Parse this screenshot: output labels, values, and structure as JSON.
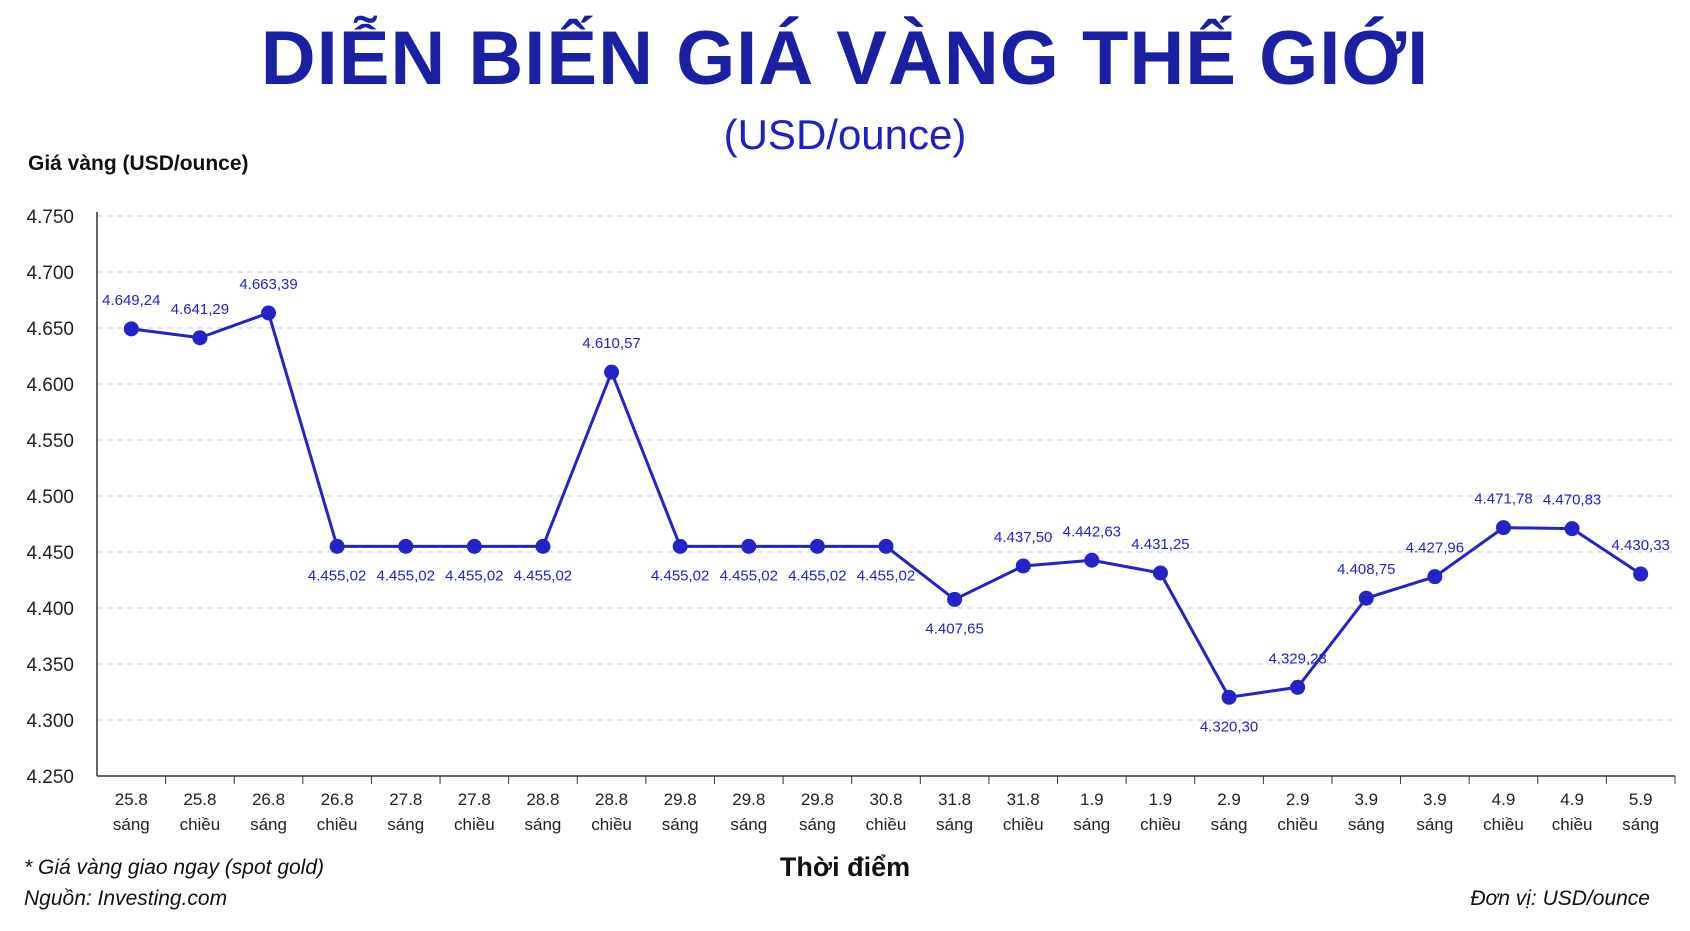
{
  "colors": {
    "title": "#1a1fa3",
    "series": "#2323c8",
    "grid": "#c9cde8"
  },
  "chart_data": {
    "type": "line",
    "title": "DIỄN BIẾN GIÁ VÀNG THẾ GIỚI",
    "subtitle": "(USD/ounce)",
    "ylabel": "Giá vàng (USD/ounce)",
    "xlabel": "Thời điểm",
    "ylim": [
      4250,
      4750
    ],
    "yticks": [
      4250,
      4300,
      4350,
      4400,
      4450,
      4500,
      4550,
      4600,
      4650,
      4700,
      4750
    ],
    "ytick_labels": [
      "4.250",
      "4.300",
      "4.350",
      "4.400",
      "4.450",
      "4.500",
      "4.550",
      "4.600",
      "4.650",
      "4.700",
      "4.750"
    ],
    "grid": true,
    "categories": [
      [
        "25.8",
        "sáng"
      ],
      [
        "25.8",
        "chiều"
      ],
      [
        "26.8",
        "sáng"
      ],
      [
        "26.8",
        "chiều"
      ],
      [
        "27.8",
        "sáng"
      ],
      [
        "27.8",
        "chiều"
      ],
      [
        "28.8",
        "sáng"
      ],
      [
        "28.8",
        "chiều"
      ],
      [
        "29.8",
        "sáng"
      ],
      [
        "29.8",
        "sáng"
      ],
      [
        "29.8",
        "sáng"
      ],
      [
        "30.8",
        "chiều"
      ],
      [
        "31.8",
        "sáng"
      ],
      [
        "31.8",
        "chiều"
      ],
      [
        "1.9",
        "sáng"
      ],
      [
        "1.9",
        "chiều"
      ],
      [
        "2.9",
        "sáng"
      ],
      [
        "2.9",
        "chiều"
      ],
      [
        "3.9",
        "sáng"
      ],
      [
        "3.9",
        "sáng"
      ],
      [
        "4.9",
        "chiều"
      ],
      [
        "4.9",
        "chiều"
      ],
      [
        "5.9",
        "sáng"
      ]
    ],
    "values": [
      4649.24,
      4641.29,
      4663.39,
      4455.02,
      4455.02,
      4455.02,
      4455.02,
      4610.57,
      4455.02,
      4455.02,
      4455.02,
      4455.02,
      4407.65,
      4437.5,
      4442.63,
      4431.25,
      4320.3,
      4329.23,
      4408.75,
      4427.96,
      4471.78,
      4470.83,
      4430.33
    ],
    "value_labels": [
      "4.649,24",
      "4.641,29",
      "4.663,39",
      "4.455,02",
      "4.455,02",
      "4.455,02",
      "4.455,02",
      "4.610,57",
      "4.455,02",
      "4.455,02",
      "4.455,02",
      "4.455,02",
      "4.407,65",
      "4.437,50",
      "4.442,63",
      "4.431,25",
      "4.320,30",
      "4.329,23",
      "4.408,75",
      "4.427,96",
      "4.471,78",
      "4.470,83",
      "4.430,33"
    ],
    "label_position": [
      "above",
      "above",
      "above",
      "below",
      "below",
      "below",
      "below",
      "above",
      "below",
      "below",
      "below",
      "below",
      "below",
      "above",
      "above",
      "above",
      "below",
      "above",
      "above",
      "above",
      "above",
      "above",
      "above"
    ]
  },
  "footer": {
    "note": "* Giá vàng giao ngay (spot gold)",
    "source": "Nguồn: Investing.com",
    "unit": "Đơn vị: USD/ounce"
  }
}
